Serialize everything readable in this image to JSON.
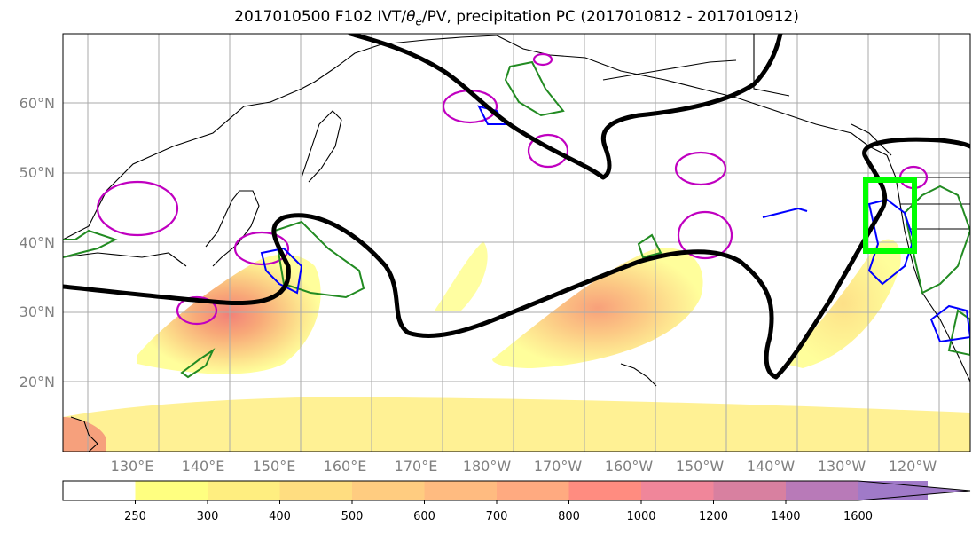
{
  "title_pre": "2017010500 F102 IVT/",
  "title_theta": "θ",
  "title_sub": "e",
  "title_post": "/PV, precipitation PC (2017010812 - 2017010912)",
  "lat_labels": [
    {
      "lat": 60,
      "text": "60°N"
    },
    {
      "lat": 50,
      "text": "50°N"
    },
    {
      "lat": 40,
      "text": "40°N"
    },
    {
      "lat": 30,
      "text": "30°N"
    },
    {
      "lat": 20,
      "text": "20°N"
    }
  ],
  "lon_labels": [
    {
      "lon": 130,
      "text": "130°E"
    },
    {
      "lon": 140,
      "text": "140°E"
    },
    {
      "lon": 150,
      "text": "150°E"
    },
    {
      "lon": 160,
      "text": "160°E"
    },
    {
      "lon": 170,
      "text": "170°E"
    },
    {
      "lon": 180,
      "text": "180°W"
    },
    {
      "lon": 190,
      "text": "170°W"
    },
    {
      "lon": 200,
      "text": "160°W"
    },
    {
      "lon": 210,
      "text": "150°W"
    },
    {
      "lon": 220,
      "text": "140°W"
    },
    {
      "lon": 230,
      "text": "130°W"
    },
    {
      "lon": 240,
      "text": "120°W"
    }
  ],
  "colorbar": {
    "labels": [
      "250",
      "300",
      "400",
      "500",
      "600",
      "700",
      "800",
      "1000",
      "1200",
      "1400",
      "1600"
    ],
    "colors": [
      "#ffffff",
      "#ffff80",
      "#ffee80",
      "#ffdd80",
      "#ffcc80",
      "#ffbb80",
      "#ffaa80",
      "#ff8c80",
      "#f0869a",
      "#d880a0",
      "#b87ab8",
      "#a07ac8"
    ],
    "extend": "max"
  },
  "colors": {
    "ivt_contour": "#000000",
    "highlight_box": "#00ff00",
    "pv_positive": "#228b22",
    "pv_negative": "#0000ff",
    "theta_contour": "#c000c0"
  }
}
